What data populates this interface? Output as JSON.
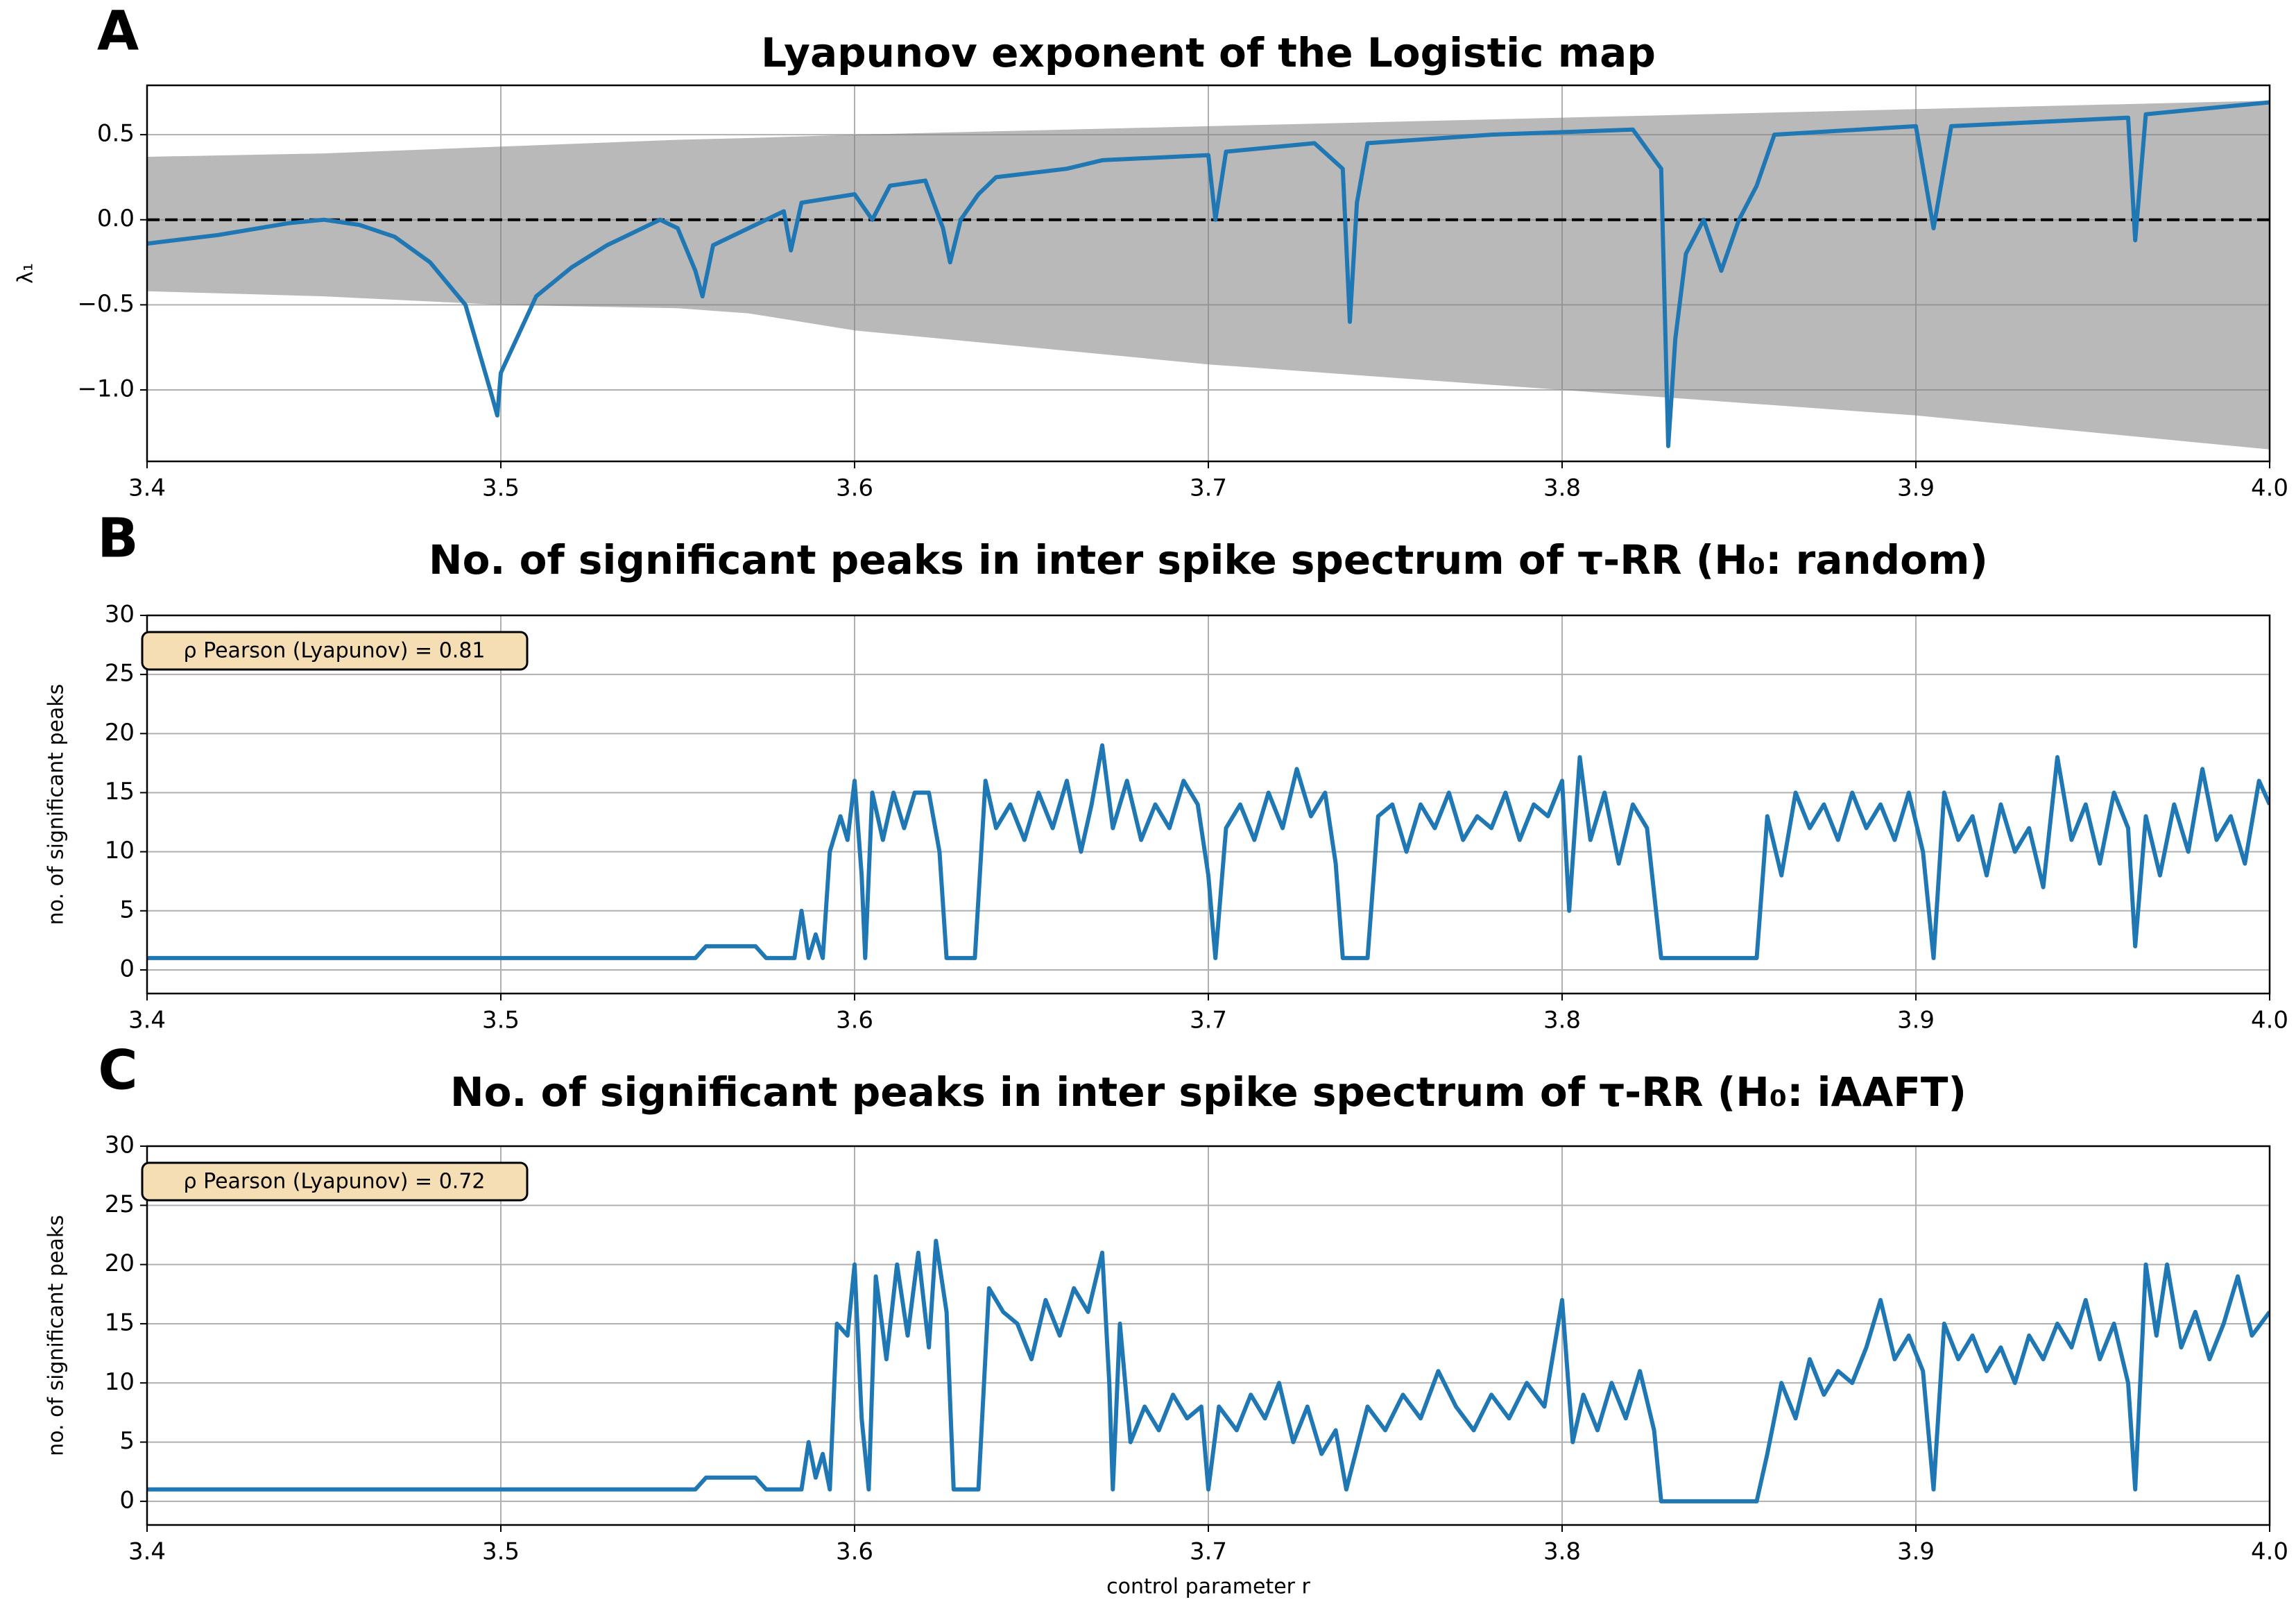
{
  "chart_data": [
    {
      "type": "line",
      "panel_label": "A",
      "title": "Lyapunov exponent of the Logistic map",
      "y_label": "λ₁",
      "xlim": [
        3.4,
        4.0
      ],
      "xticks": [
        3.4,
        3.5,
        3.6,
        3.7,
        3.8,
        3.9,
        {
          "value": 4,
          "label": "4.0"
        }
      ],
      "ylim": [
        -1.42,
        0.79
      ],
      "yticks": [
        0.5,
        {
          "value": 0,
          "label": "0.0"
        },
        {
          "value": -0.5,
          "label": "−0.5"
        },
        {
          "value": -1,
          "label": "−1.0"
        }
      ],
      "grid": true,
      "reference_line": {
        "value": 0,
        "style": "dashed",
        "color": "#000000"
      },
      "band": {
        "color": "#808080",
        "x": [
          3.4,
          3.45,
          3.5,
          3.55,
          3.57,
          3.6,
          3.7,
          3.8,
          3.9,
          4.0
        ],
        "upper": [
          0.37,
          0.39,
          0.43,
          0.47,
          0.48,
          0.5,
          0.55,
          0.6,
          0.65,
          0.7
        ],
        "lower": [
          -0.42,
          -0.45,
          -0.5,
          -0.52,
          -0.55,
          -0.65,
          -0.85,
          -1.0,
          -1.15,
          -1.35
        ]
      },
      "x": [
        3.4,
        3.42,
        3.44,
        3.45,
        3.46,
        3.47,
        3.48,
        3.49,
        3.497,
        3.499,
        3.5,
        3.51,
        3.52,
        3.53,
        3.54,
        3.545,
        3.55,
        3.555,
        3.557,
        3.56,
        3.57,
        3.58,
        3.582,
        3.585,
        3.6,
        3.605,
        3.61,
        3.62,
        3.625,
        3.627,
        3.63,
        3.635,
        3.64,
        3.66,
        3.67,
        3.7,
        3.702,
        3.705,
        3.73,
        3.738,
        3.74,
        3.742,
        3.745,
        3.78,
        3.82,
        3.828,
        3.83,
        3.832,
        3.835,
        3.84,
        3.845,
        3.85,
        3.855,
        3.86,
        3.9,
        3.905,
        3.91,
        3.96,
        3.962,
        3.965,
        4.0
      ],
      "series": [
        {
          "color": "#1f77b4",
          "values": [
            -0.14,
            -0.09,
            -0.02,
            0.0,
            -0.03,
            -0.1,
            -0.25,
            -0.5,
            -1.0,
            -1.15,
            -0.9,
            -0.45,
            -0.28,
            -0.15,
            -0.05,
            0.0,
            -0.05,
            -0.3,
            -0.45,
            -0.15,
            -0.05,
            0.05,
            -0.18,
            0.1,
            0.15,
            0.0,
            0.2,
            0.23,
            -0.05,
            -0.25,
            0.0,
            0.15,
            0.25,
            0.3,
            0.35,
            0.38,
            0.0,
            0.4,
            0.45,
            0.3,
            -0.6,
            0.1,
            0.45,
            0.5,
            0.53,
            0.3,
            -1.33,
            -0.7,
            -0.2,
            0.0,
            -0.3,
            0.0,
            0.2,
            0.5,
            0.55,
            -0.05,
            0.55,
            0.6,
            -0.12,
            0.62,
            0.69
          ]
        }
      ]
    },
    {
      "type": "line",
      "panel_label": "B",
      "title": "No. of significant peaks in inter spike spectrum of τ-RR (H₀: random)",
      "y_label": "no. of significant peaks",
      "annotation": "ρ Pearson (Lyapunov) = 0.81",
      "xlim": [
        3.4,
        4.0
      ],
      "xticks": [
        3.4,
        3.5,
        3.6,
        3.7,
        3.8,
        3.9,
        {
          "value": 4,
          "label": "4.0"
        }
      ],
      "ylim": [
        -2,
        30
      ],
      "yticks": [
        0,
        5,
        10,
        15,
        20,
        25,
        30
      ],
      "grid": true,
      "x": [
        3.4,
        3.555,
        3.558,
        3.572,
        3.575,
        3.583,
        3.585,
        3.587,
        3.589,
        3.591,
        3.593,
        3.596,
        3.598,
        3.6,
        3.602,
        3.603,
        3.605,
        3.608,
        3.611,
        3.614,
        3.617,
        3.621,
        3.624,
        3.626,
        3.634,
        3.637,
        3.64,
        3.644,
        3.648,
        3.652,
        3.656,
        3.66,
        3.664,
        3.667,
        3.67,
        3.673,
        3.677,
        3.681,
        3.685,
        3.689,
        3.693,
        3.697,
        3.7,
        3.702,
        3.705,
        3.709,
        3.713,
        3.717,
        3.721,
        3.725,
        3.729,
        3.733,
        3.736,
        3.738,
        3.745,
        3.748,
        3.752,
        3.756,
        3.76,
        3.764,
        3.768,
        3.772,
        3.776,
        3.78,
        3.784,
        3.788,
        3.792,
        3.796,
        3.8,
        3.802,
        3.805,
        3.808,
        3.812,
        3.816,
        3.82,
        3.824,
        3.828,
        3.855,
        3.858,
        3.862,
        3.866,
        3.87,
        3.874,
        3.878,
        3.882,
        3.886,
        3.89,
        3.894,
        3.898,
        3.902,
        3.905,
        3.908,
        3.912,
        3.916,
        3.92,
        3.924,
        3.928,
        3.932,
        3.936,
        3.94,
        3.944,
        3.948,
        3.952,
        3.956,
        3.96,
        3.962,
        3.965,
        3.969,
        3.973,
        3.977,
        3.981,
        3.985,
        3.989,
        3.993,
        3.997,
        4.0
      ],
      "series": [
        {
          "color": "#1f77b4",
          "values": [
            1,
            1,
            2,
            2,
            1,
            1,
            5,
            1,
            3,
            1,
            10,
            13,
            11,
            16,
            8,
            1,
            15,
            11,
            15,
            12,
            15,
            15,
            10,
            1,
            1,
            16,
            12,
            14,
            11,
            15,
            12,
            16,
            10,
            14,
            19,
            12,
            16,
            11,
            14,
            12,
            16,
            14,
            8,
            1,
            12,
            14,
            11,
            15,
            12,
            17,
            13,
            15,
            9,
            1,
            1,
            13,
            14,
            10,
            14,
            12,
            15,
            11,
            13,
            12,
            15,
            11,
            14,
            13,
            16,
            5,
            18,
            11,
            15,
            9,
            14,
            12,
            1,
            1,
            13,
            8,
            15,
            12,
            14,
            11,
            15,
            12,
            14,
            11,
            15,
            10,
            1,
            15,
            11,
            13,
            8,
            14,
            10,
            12,
            7,
            18,
            11,
            14,
            9,
            15,
            12,
            2,
            13,
            8,
            14,
            10,
            17,
            11,
            13,
            9,
            16,
            14
          ]
        }
      ]
    },
    {
      "type": "line",
      "panel_label": "C",
      "title": "No. of significant peaks in inter spike spectrum of τ-RR (H₀: iAAFT)",
      "y_label": "no. of significant peaks",
      "x_label": "control parameter r",
      "annotation": "ρ Pearson (Lyapunov) = 0.72",
      "xlim": [
        3.4,
        4.0
      ],
      "xticks": [
        3.4,
        3.5,
        3.6,
        3.7,
        3.8,
        3.9,
        {
          "value": 4,
          "label": "4.0"
        }
      ],
      "ylim": [
        -2,
        30
      ],
      "yticks": [
        0,
        5,
        10,
        15,
        20,
        25,
        30
      ],
      "grid": true,
      "x": [
        3.4,
        3.555,
        3.558,
        3.572,
        3.575,
        3.585,
        3.587,
        3.589,
        3.591,
        3.593,
        3.595,
        3.598,
        3.6,
        3.602,
        3.604,
        3.606,
        3.609,
        3.612,
        3.615,
        3.618,
        3.621,
        3.623,
        3.626,
        3.628,
        3.635,
        3.638,
        3.642,
        3.646,
        3.65,
        3.654,
        3.658,
        3.662,
        3.666,
        3.67,
        3.672,
        3.673,
        3.675,
        3.678,
        3.682,
        3.686,
        3.69,
        3.694,
        3.698,
        3.7,
        3.703,
        3.708,
        3.712,
        3.716,
        3.72,
        3.724,
        3.728,
        3.732,
        3.736,
        3.739,
        3.745,
        3.75,
        3.755,
        3.76,
        3.765,
        3.77,
        3.775,
        3.78,
        3.785,
        3.79,
        3.795,
        3.8,
        3.803,
        3.806,
        3.81,
        3.814,
        3.818,
        3.822,
        3.826,
        3.828,
        3.855,
        3.858,
        3.862,
        3.866,
        3.87,
        3.874,
        3.878,
        3.882,
        3.886,
        3.89,
        3.894,
        3.898,
        3.902,
        3.905,
        3.908,
        3.912,
        3.916,
        3.92,
        3.924,
        3.928,
        3.932,
        3.936,
        3.94,
        3.944,
        3.948,
        3.952,
        3.956,
        3.96,
        3.962,
        3.965,
        3.968,
        3.971,
        3.975,
        3.979,
        3.983,
        3.987,
        3.991,
        3.995,
        4.0
      ],
      "series": [
        {
          "color": "#1f77b4",
          "values": [
            1,
            1,
            2,
            2,
            1,
            1,
            5,
            2,
            4,
            1,
            15,
            14,
            20,
            7,
            1,
            19,
            12,
            20,
            14,
            21,
            13,
            22,
            16,
            1,
            1,
            18,
            16,
            15,
            12,
            17,
            14,
            18,
            16,
            21,
            10,
            1,
            15,
            5,
            8,
            6,
            9,
            7,
            8,
            1,
            8,
            6,
            9,
            7,
            10,
            5,
            8,
            4,
            6,
            1,
            8,
            6,
            9,
            7,
            11,
            8,
            6,
            9,
            7,
            10,
            8,
            17,
            5,
            9,
            6,
            10,
            7,
            11,
            6,
            0,
            0,
            4,
            10,
            7,
            12,
            9,
            11,
            10,
            13,
            17,
            12,
            14,
            11,
            1,
            15,
            12,
            14,
            11,
            13,
            10,
            14,
            12,
            15,
            13,
            17,
            12,
            15,
            10,
            1,
            20,
            14,
            20,
            13,
            16,
            12,
            15,
            19,
            14,
            16
          ]
        }
      ]
    }
  ]
}
